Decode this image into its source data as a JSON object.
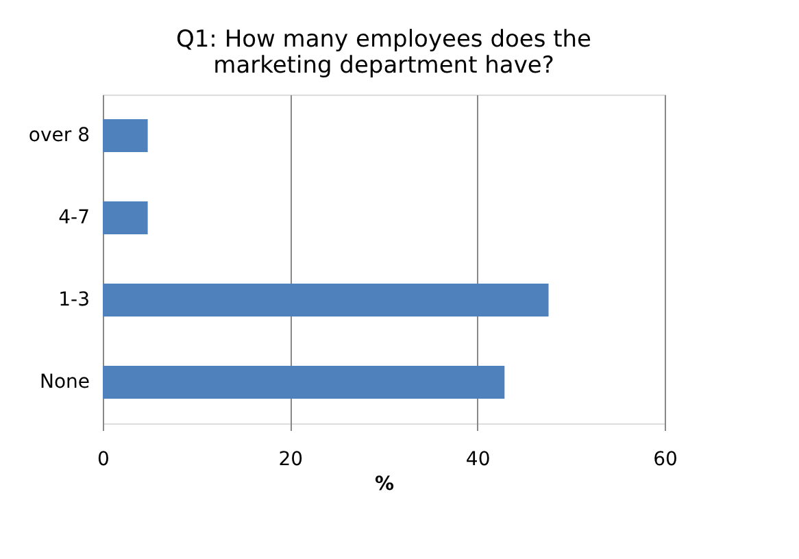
{
  "chart_data": {
    "type": "bar",
    "orientation": "horizontal",
    "title": "Q1: How many employees does the marketing department have?",
    "categories": [
      "over 8",
      "4-7",
      "1-3",
      "None"
    ],
    "values": [
      4.8,
      4.8,
      47.6,
      42.9
    ],
    "color": "#4f81bd",
    "xlabel": "%",
    "xlim": [
      0,
      60
    ],
    "xticks": [
      0,
      20,
      40,
      60
    ],
    "grid": "x"
  }
}
